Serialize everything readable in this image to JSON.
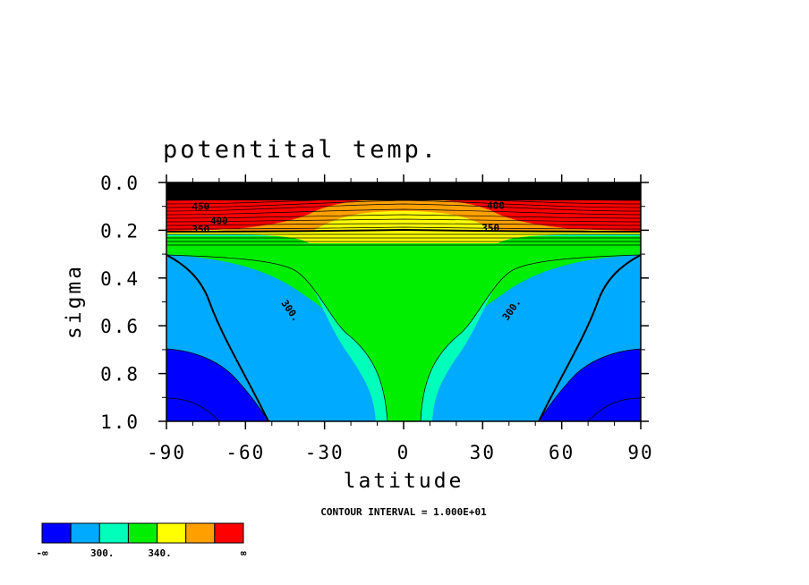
{
  "chart_data": {
    "type": "heatmap",
    "title": "potentital temp.",
    "xlabel": "latitude",
    "ylabel": "sigma",
    "xlim": [
      -90,
      90
    ],
    "ylim": [
      1.0,
      0.0
    ],
    "x_ticks": [
      -90,
      -60,
      -30,
      0,
      30,
      60,
      90
    ],
    "x_tick_labels": [
      "-90",
      "-60",
      "-30",
      "0",
      "30",
      "60",
      "90"
    ],
    "y_ticks": [
      0.0,
      0.2,
      0.4,
      0.6,
      0.8,
      1.0
    ],
    "y_tick_labels": [
      "0.0",
      "0.2",
      "0.4",
      "0.6",
      "0.8",
      "1.0"
    ],
    "contour_interval_text": "CONTOUR INTERVAL = 1.000E+01",
    "contour_labels": [
      {
        "text": "450",
        "lat": -77,
        "sigma": 0.115
      },
      {
        "text": "400",
        "lat": -70,
        "sigma": 0.175
      },
      {
        "text": "350",
        "lat": -77,
        "sigma": 0.21
      },
      {
        "text": "350",
        "lat": 33,
        "sigma": 0.205
      },
      {
        "text": "400",
        "lat": 35,
        "sigma": 0.11
      },
      {
        "text": "300.",
        "lat": -44,
        "sigma": 0.545
      },
      {
        "text": "300.",
        "lat": 42,
        "sigma": 0.54
      }
    ],
    "colorbar": {
      "colors": [
        "#0000ff",
        "#00aaff",
        "#00ffbb",
        "#00ee00",
        "#ffff00",
        "#ffa000",
        "#ff0000"
      ],
      "labels": [
        "-∞",
        "300.",
        "340.",
        "∞"
      ]
    },
    "grid": false
  }
}
